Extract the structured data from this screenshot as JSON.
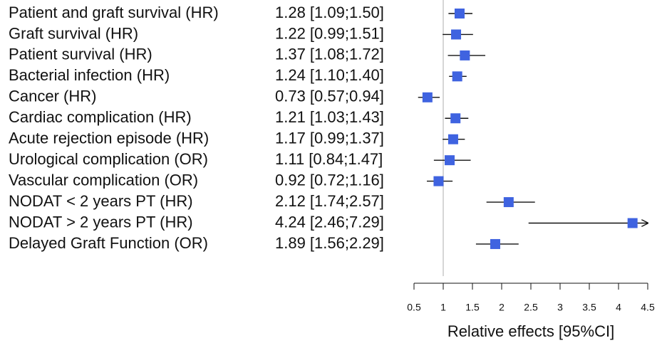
{
  "chart_data": {
    "type": "forest",
    "categories": [
      "Patient and graft survival (HR)",
      "Graft survival (HR)",
      "Patient survival (HR)",
      "Bacterial infection (HR)",
      "Cancer (HR)",
      "Cardiac complication (HR)",
      "Acute rejection episode (HR)",
      "Urological complication (OR)",
      "Vascular complication (OR)",
      "NODAT < 2 years PT (HR)",
      "NODAT > 2 years PT (HR)",
      "Delayed Graft Function (OR)"
    ],
    "values": [
      1.28,
      1.22,
      1.37,
      1.24,
      0.73,
      1.21,
      1.17,
      1.11,
      0.92,
      2.12,
      4.24,
      1.89
    ],
    "ci_lower": [
      1.09,
      0.99,
      1.08,
      1.1,
      0.57,
      1.03,
      0.99,
      0.84,
      0.72,
      1.74,
      2.46,
      1.56
    ],
    "ci_upper": [
      1.5,
      1.51,
      1.72,
      1.4,
      0.94,
      1.43,
      1.37,
      1.47,
      1.16,
      2.57,
      7.29,
      2.29
    ],
    "value_labels": [
      "1.28 [1.09;1.50]",
      "1.22 [0.99;1.51]",
      "1.37 [1.08;1.72]",
      "1.24 [1.10;1.40]",
      "0.73 [0.57;0.94]",
      "1.21 [1.03;1.43]",
      "1.17 [0.99;1.37]",
      "1.11 [0.84;1.47]",
      "0.92 [0.72;1.16]",
      "2.12 [1.74;2.57]",
      "4.24 [2.46;7.29]",
      "1.89 [1.56;2.29]"
    ],
    "color": "#3f63e0",
    "xlabel": "Relative effects [95%CI]",
    "xlim": [
      0.5,
      4.5
    ],
    "xticks": [
      0.5,
      1,
      1.5,
      2,
      2.5,
      3,
      3.5,
      4,
      4.5
    ],
    "reference_line": 1
  }
}
